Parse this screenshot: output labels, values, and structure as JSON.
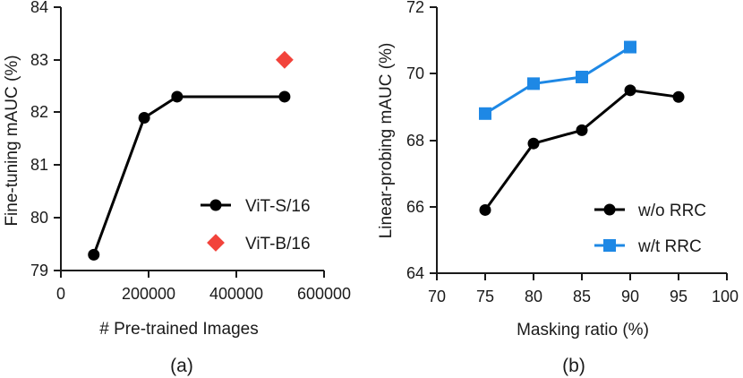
{
  "chart_data": [
    {
      "type": "line",
      "panel_label": "(a)",
      "xlabel": "# Pre-trained Images",
      "ylabel": "Fine-tuning mAUC (%)",
      "xlim": [
        0,
        600000
      ],
      "ylim": [
        79,
        84
      ],
      "xticks": [
        "0",
        "200000",
        "400000",
        "600000"
      ],
      "yticks": [
        "79",
        "80",
        "81",
        "82",
        "83",
        "84"
      ],
      "legend_position": "bottom-right",
      "series": [
        {
          "name": "ViT-S/16",
          "marker": "circle",
          "color": "#000000",
          "x": [
            75000,
            190000,
            265000,
            510000
          ],
          "values": [
            79.3,
            81.9,
            82.3,
            82.3
          ]
        },
        {
          "name": "ViT-B/16",
          "marker": "diamond",
          "color": "#f2433b",
          "x": [
            510000
          ],
          "values": [
            83.0
          ]
        }
      ]
    },
    {
      "type": "line",
      "panel_label": "(b)",
      "xlabel": "Masking ratio (%)",
      "ylabel": "Linear-probing mAUC (%)",
      "xlim": [
        70,
        100
      ],
      "ylim": [
        64,
        72
      ],
      "xticks": [
        "70",
        "75",
        "80",
        "85",
        "90",
        "95",
        "100"
      ],
      "yticks": [
        "64",
        "66",
        "68",
        "70",
        "72"
      ],
      "legend_position": "bottom-right",
      "series": [
        {
          "name": "w/o RRC",
          "marker": "circle",
          "color": "#000000",
          "x": [
            75,
            80,
            85,
            90,
            95
          ],
          "values": [
            65.9,
            67.9,
            68.3,
            69.5,
            69.3
          ]
        },
        {
          "name": "w/t RRC",
          "marker": "square",
          "color": "#1e88e5",
          "x": [
            75,
            80,
            85,
            90
          ],
          "values": [
            68.8,
            69.7,
            69.9,
            70.8
          ]
        }
      ]
    }
  ]
}
